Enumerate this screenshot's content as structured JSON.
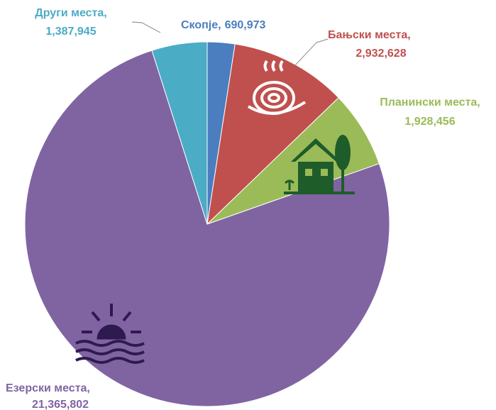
{
  "chart_data": {
    "type": "pie",
    "categories": [
      "Скопје,",
      "Бањски места,",
      "Планински места,",
      "Езерски места,",
      "Други места,"
    ],
    "values": [
      690973,
      2932628,
      1928456,
      21365802,
      1387945
    ],
    "value_labels": [
      "690,973",
      "2,932,628",
      "1,928,456",
      "21,365,802",
      "1,387,945"
    ],
    "colors": [
      "#4a7ebf",
      "#c0504d",
      "#9bbb59",
      "#8064a2",
      "#4bacc6"
    ]
  }
}
